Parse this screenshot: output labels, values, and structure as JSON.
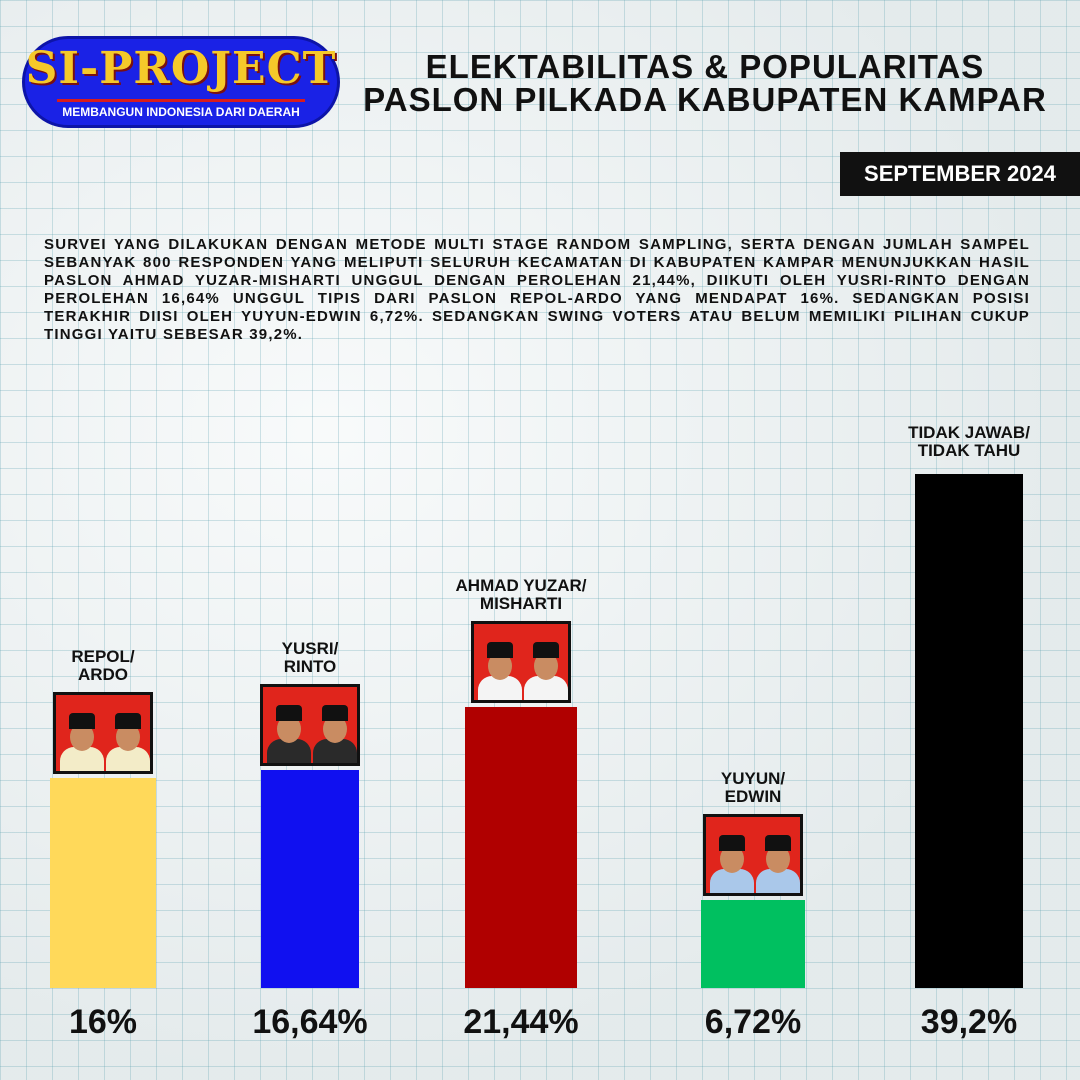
{
  "logo": {
    "title": "SI-PROJECT",
    "subtitle": "MEMBANGUN INDONESIA DARI DAERAH"
  },
  "title": {
    "line1": "ELEKTABILITAS & POPULARITAS",
    "line2": "PASLON PILKADA KABUPATEN KAMPAR"
  },
  "date": "SEPTEMBER 2024",
  "description": "SURVEI YANG DILAKUKAN DENGAN METODE MULTI STAGE RANDOM SAMPLING, SERTA DENGAN JUMLAH SAMPEL SEBANYAK 800 RESPONDEN YANG MELIPUTI SELURUH KECAMATAN DI KABUPATEN KAMPAR MENUNJUKKAN HASIL PASLON AHMAD YUZAR-MISHARTI UNGGUL DENGAN PEROLEHAN 21,44%, DIIKUTI OLEH YUSRI-RINTO DENGAN PEROLEHAN 16,64% UNGGUL TIPIS DARI PASLON REPOL-ARDO YANG MENDAPAT 16%. SEDANGKAN POSISI TERAKHIR DIISI OLEH YUYUN-EDWIN 6,72%. SEDANGKAN SWING VOTERS ATAU BELUM MEMILIKI PILIHAN CUKUP TINGGI YAITU SEBESAR 39,2%.",
  "chart_data": {
    "type": "bar",
    "categories": [
      "REPOL/\nARDO",
      "YUSRI/\nRINTO",
      "AHMAD YUZAR/\nMISHARTI",
      "YUYUN/\nEDWIN",
      "TIDAK JAWAB/\nTIDAK TAHU"
    ],
    "values": [
      16,
      16.64,
      21.44,
      6.72,
      39.2
    ],
    "value_labels": [
      "16%",
      "16,64%",
      "21,44%",
      "6,72%",
      "39,2%"
    ],
    "colors": [
      "#ffd95a",
      "#1010f0",
      "#b00000",
      "#00c060",
      "#000000"
    ],
    "shirt_colors": [
      "#f3ecc8",
      "#2a2a2a",
      "#f4f4f4",
      "#aac8ea"
    ],
    "unit": "%"
  }
}
